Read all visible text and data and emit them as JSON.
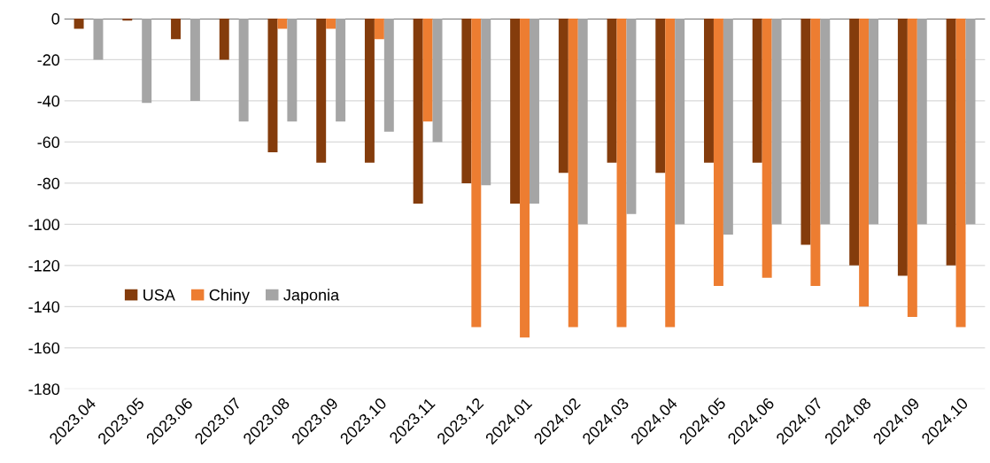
{
  "chart_data": {
    "type": "bar",
    "categories": [
      "2023.04",
      "2023.05",
      "2023.06",
      "2023.07",
      "2023.08",
      "2023.09",
      "2023.10",
      "2023.11",
      "2023.12",
      "2024.01",
      "2024.02",
      "2024.03",
      "2024.04",
      "2024.05",
      "2024.06",
      "2024.07",
      "2024.08",
      "2024.09",
      "2024.10"
    ],
    "series": [
      {
        "name": "USA",
        "color": "#843c0c",
        "values": [
          -5,
          -1,
          -10,
          -20,
          -65,
          -70,
          -70,
          -90,
          -80,
          -90,
          -75,
          -70,
          -75,
          -70,
          -70,
          -110,
          -120,
          -125,
          -120
        ]
      },
      {
        "name": "Chiny",
        "color": "#ed7d31",
        "values": [
          null,
          null,
          null,
          null,
          -5,
          -5,
          -10,
          -50,
          -150,
          -155,
          -150,
          -150,
          -150,
          -130,
          -126,
          -130,
          -140,
          -145,
          -150
        ]
      },
      {
        "name": "Japonia",
        "color": "#a5a5a5",
        "values": [
          -20,
          -41,
          -40,
          -50,
          -50,
          -50,
          -55,
          -60,
          -81,
          -90,
          -100,
          -95,
          -100,
          -105,
          -100,
          -100,
          -100,
          -100,
          -100
        ]
      }
    ],
    "ylim": [
      -180,
      0
    ],
    "yticks": [
      -180,
      -160,
      -140,
      -120,
      -100,
      -80,
      -60,
      -40,
      -20,
      0
    ],
    "grid": "y",
    "legend": "left"
  }
}
